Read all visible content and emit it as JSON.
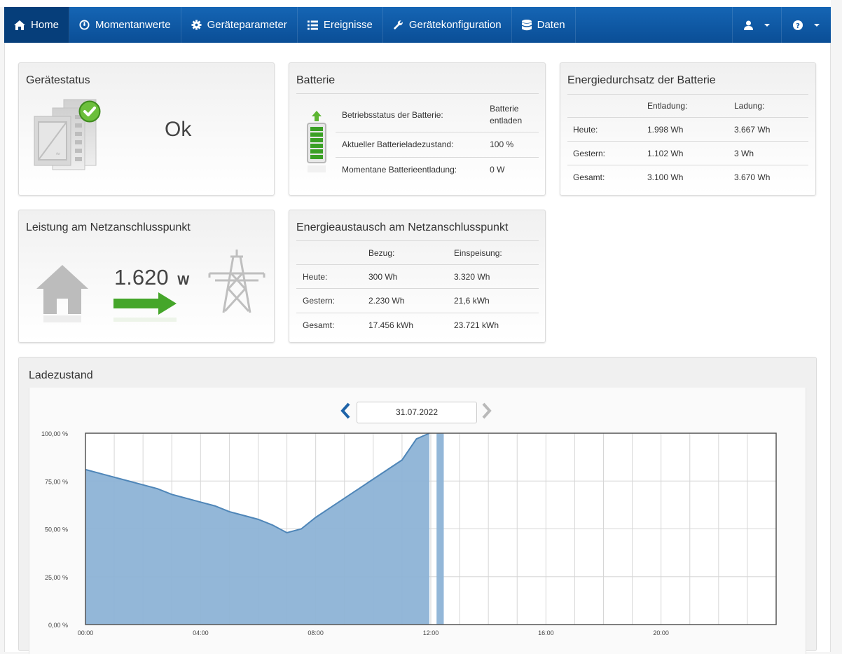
{
  "nav": {
    "items": [
      {
        "label": "Home",
        "icon": "home-icon",
        "active": true
      },
      {
        "label": "Momentanwerte",
        "icon": "gauge-icon"
      },
      {
        "label": "Geräteparameter",
        "icon": "gear-icon"
      },
      {
        "label": "Ereignisse",
        "icon": "list-icon"
      },
      {
        "label": "Gerätekonfiguration",
        "icon": "wrench-icon"
      },
      {
        "label": "Daten",
        "icon": "database-icon"
      }
    ],
    "user_icon": "user-icon",
    "help_icon": "help-icon"
  },
  "status": {
    "title": "Gerätestatus",
    "value": "Ok"
  },
  "battery": {
    "title": "Batterie",
    "rows": [
      {
        "label": "Betriebsstatus der Batterie:",
        "value": "Batterie entladen"
      },
      {
        "label": "Aktueller Batterieladezustand:",
        "value": "100 %"
      },
      {
        "label": "Momentane Batterieentladung:",
        "value": "0 W"
      }
    ]
  },
  "throughput": {
    "title": "Energiedurchsatz der Batterie",
    "headers": [
      "Entladung:",
      "Ladung:"
    ],
    "rows": [
      {
        "label": "Heute:",
        "a": "1.998 Wh",
        "b": "3.667 Wh"
      },
      {
        "label": "Gestern:",
        "a": "1.102 Wh",
        "b": "3 Wh"
      },
      {
        "label": "Gesamt:",
        "a": "3.100 Wh",
        "b": "3.670 Wh"
      }
    ]
  },
  "grid_power": {
    "title": "Leistung am Netzanschlusspunkt",
    "value": "1.620",
    "unit": "W"
  },
  "exchange": {
    "title": "Energieaustausch am Netzanschlusspunkt",
    "headers": [
      "Bezug:",
      "Einspeisung:"
    ],
    "rows": [
      {
        "label": "Heute:",
        "a": "300 Wh",
        "b": "3.320 Wh"
      },
      {
        "label": "Gestern:",
        "a": "2.230 Wh",
        "b": "21,6 kWh"
      },
      {
        "label": "Gesamt:",
        "a": "17.456 kWh",
        "b": "23.721 kWh"
      }
    ]
  },
  "chart_section": {
    "title": "Ladezustand",
    "date": "31.07.2022"
  },
  "chart_data": {
    "type": "area",
    "title": "",
    "xlabel": "",
    "ylabel": "",
    "x_ticks": [
      "00:00",
      "04:00",
      "08:00",
      "12:00",
      "16:00",
      "20:00"
    ],
    "y_ticks": [
      "0,00 %",
      "25,00 %",
      "50,00 %",
      "75,00 %",
      "100,00 %"
    ],
    "xlim": [
      0,
      24
    ],
    "ylim": [
      0,
      100
    ],
    "grid": true,
    "color": "#8db3d6",
    "line_color": "#4f86b8",
    "series": [
      {
        "x": [
          0,
          0.5,
          1,
          1.5,
          2,
          2.5,
          3,
          3.5,
          4,
          4.5,
          5,
          5.5,
          6,
          6.5,
          7,
          7.5,
          8,
          8.5,
          9,
          9.5,
          10,
          10.5,
          11,
          11.5,
          11.95,
          11.95,
          12.2,
          12.2,
          12.45
        ],
        "y": [
          81,
          79,
          77,
          75,
          73,
          71,
          68,
          66,
          64,
          62,
          59,
          57,
          55,
          52,
          48,
          50,
          56,
          61,
          66,
          71,
          76,
          81,
          86,
          97,
          100,
          0,
          0,
          100,
          100
        ]
      }
    ]
  }
}
